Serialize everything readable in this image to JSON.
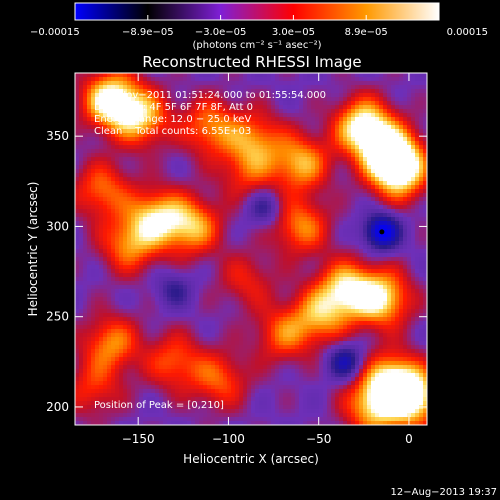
{
  "chart_data": {
    "type": "heatmap",
    "title": "Reconstructed RHESSI Image",
    "xlabel": "Heliocentric X (arcsec)",
    "ylabel": "Heliocentric Y (arcsec)",
    "xlim": [
      -185,
      10
    ],
    "ylim": [
      190,
      385
    ],
    "x_ticks": [
      {
        "value": -150,
        "label": "−150"
      },
      {
        "value": -100,
        "label": "−100"
      },
      {
        "value": -50,
        "label": "−50"
      },
      {
        "value": 0,
        "label": "0"
      }
    ],
    "y_ticks": [
      {
        "value": 200,
        "label": "200"
      },
      {
        "value": 250,
        "label": "250"
      },
      {
        "value": 300,
        "label": "300"
      },
      {
        "value": 350,
        "label": "350"
      }
    ],
    "colorbar": {
      "min": -0.00015,
      "max": 0.00015,
      "unit_label": "(photons cm⁻² s⁻¹ asec⁻²)",
      "tick_labels": [
        "−0.00015",
        "−8.9e−05",
        "−3.0e−05",
        "3.0e−05",
        "8.9e−05",
        "0.00015"
      ],
      "colors": [
        "#0000ff",
        "#000000",
        "#7f1fd6",
        "#ff0000",
        "#ff9900",
        "#ffffff"
      ]
    },
    "annotations": [
      "8−Nov−2011 01:51:24.000 to 01:55:54.000",
      "Detectors: 4F 5F 6F 7F 8F, Att 0",
      "Energy Range: 12.0 − 25.0 keV",
      "Clean    Total counts: 6.55E+03"
    ],
    "peak_label": "Position of Peak = [0,210]",
    "sources": [
      {
        "x": -165,
        "y": 370,
        "amp": 1.0
      },
      {
        "x": -148,
        "y": 360,
        "amp": 0.7
      },
      {
        "x": -110,
        "y": 355,
        "amp": 0.6
      },
      {
        "x": -85,
        "y": 348,
        "amp": 0.55
      },
      {
        "x": -60,
        "y": 335,
        "amp": 0.7
      },
      {
        "x": -25,
        "y": 355,
        "amp": 1.0
      },
      {
        "x": -10,
        "y": 340,
        "amp": 0.9
      },
      {
        "x": -5,
        "y": 330,
        "amp": 0.8
      },
      {
        "x": -170,
        "y": 320,
        "amp": 0.55
      },
      {
        "x": -140,
        "y": 305,
        "amp": 0.75
      },
      {
        "x": -120,
        "y": 300,
        "amp": 0.7
      },
      {
        "x": -155,
        "y": 290,
        "amp": 0.6
      },
      {
        "x": -90,
        "y": 330,
        "amp": 0.4
      },
      {
        "x": -60,
        "y": 300,
        "amp": 0.6
      },
      {
        "x": -35,
        "y": 265,
        "amp": 0.8
      },
      {
        "x": -15,
        "y": 260,
        "amp": 0.85
      },
      {
        "x": -50,
        "y": 250,
        "amp": 0.6
      },
      {
        "x": -70,
        "y": 240,
        "amp": 0.5
      },
      {
        "x": -165,
        "y": 235,
        "amp": 0.6
      },
      {
        "x": -130,
        "y": 225,
        "amp": 0.5
      },
      {
        "x": -105,
        "y": 215,
        "amp": 0.5
      },
      {
        "x": -10,
        "y": 215,
        "amp": 0.75
      },
      {
        "x": 2,
        "y": 205,
        "amp": 0.95
      },
      {
        "x": -20,
        "y": 200,
        "amp": 0.7
      },
      {
        "x": -90,
        "y": 270,
        "amp": 0.35
      },
      {
        "x": -175,
        "y": 210,
        "amp": 0.4
      }
    ],
    "dips": [
      {
        "x": -15,
        "y": 297,
        "amp": 0.9
      },
      {
        "x": -35,
        "y": 225,
        "amp": 0.6
      },
      {
        "x": -80,
        "y": 310,
        "amp": 0.4
      },
      {
        "x": -130,
        "y": 265,
        "amp": 0.35
      }
    ]
  },
  "footer": {
    "timestamp": "12−Aug−2013 19:37"
  }
}
